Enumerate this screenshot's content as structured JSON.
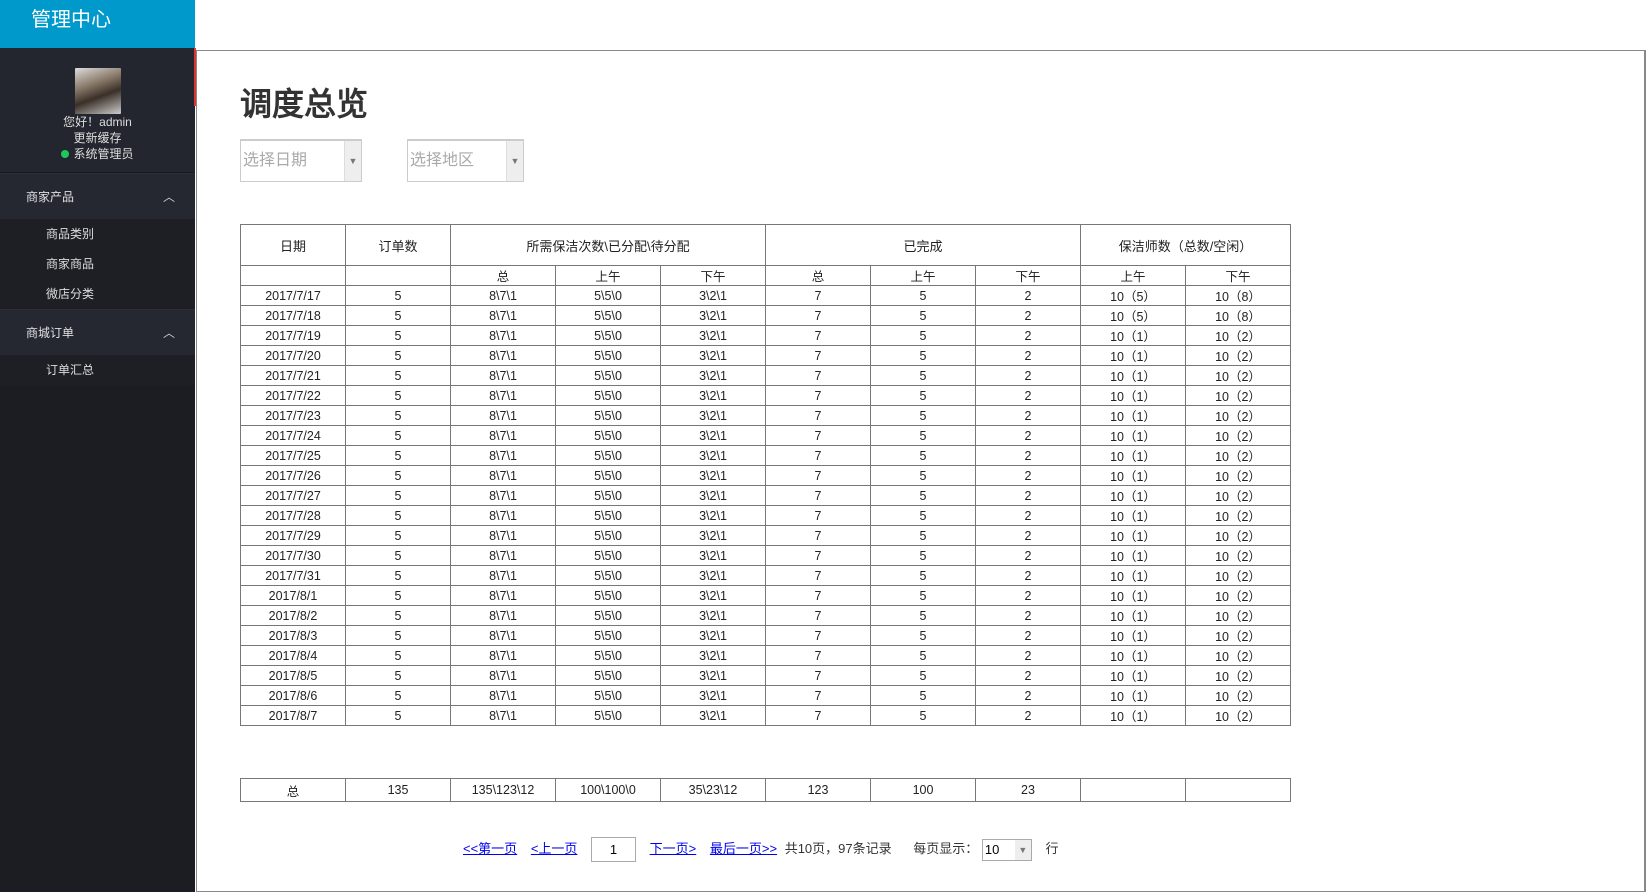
{
  "brand": "管理中心",
  "profile": {
    "greeting": "您好！admin",
    "refresh": "更新缓存",
    "role": "系统管理员"
  },
  "nav": [
    {
      "label": "商家产品",
      "items": [
        "商品类别",
        "商家商品",
        "微店分类"
      ]
    },
    {
      "label": "商城订单",
      "items": [
        "订单汇总"
      ]
    }
  ],
  "page_title": "调度总览",
  "filters": {
    "date_placeholder": "选择日期",
    "region_placeholder": "选择地区"
  },
  "table": {
    "headers": [
      "日期",
      "订单数",
      "所需保洁次数\\已分配\\待分配",
      "已完成",
      "保洁师数（总数/空闲）"
    ],
    "subheaders": [
      "",
      "",
      "总",
      "上午",
      "下午",
      "总",
      "上午",
      "下午",
      "上午",
      "下午"
    ],
    "rows": [
      [
        "2017/7/17",
        "5",
        "8\\7\\1",
        "5\\5\\0",
        "3\\2\\1",
        "7",
        "5",
        "2",
        "10（5）",
        "10（8）"
      ],
      [
        "2017/7/18",
        "5",
        "8\\7\\1",
        "5\\5\\0",
        "3\\2\\1",
        "7",
        "5",
        "2",
        "10（5）",
        "10（8）"
      ],
      [
        "2017/7/19",
        "5",
        "8\\7\\1",
        "5\\5\\0",
        "3\\2\\1",
        "7",
        "5",
        "2",
        "10（1）",
        "10（2）"
      ],
      [
        "2017/7/20",
        "5",
        "8\\7\\1",
        "5\\5\\0",
        "3\\2\\1",
        "7",
        "5",
        "2",
        "10（1）",
        "10（2）"
      ],
      [
        "2017/7/21",
        "5",
        "8\\7\\1",
        "5\\5\\0",
        "3\\2\\1",
        "7",
        "5",
        "2",
        "10（1）",
        "10（2）"
      ],
      [
        "2017/7/22",
        "5",
        "8\\7\\1",
        "5\\5\\0",
        "3\\2\\1",
        "7",
        "5",
        "2",
        "10（1）",
        "10（2）"
      ],
      [
        "2017/7/23",
        "5",
        "8\\7\\1",
        "5\\5\\0",
        "3\\2\\1",
        "7",
        "5",
        "2",
        "10（1）",
        "10（2）"
      ],
      [
        "2017/7/24",
        "5",
        "8\\7\\1",
        "5\\5\\0",
        "3\\2\\1",
        "7",
        "5",
        "2",
        "10（1）",
        "10（2）"
      ],
      [
        "2017/7/25",
        "5",
        "8\\7\\1",
        "5\\5\\0",
        "3\\2\\1",
        "7",
        "5",
        "2",
        "10（1）",
        "10（2）"
      ],
      [
        "2017/7/26",
        "5",
        "8\\7\\1",
        "5\\5\\0",
        "3\\2\\1",
        "7",
        "5",
        "2",
        "10（1）",
        "10（2）"
      ],
      [
        "2017/7/27",
        "5",
        "8\\7\\1",
        "5\\5\\0",
        "3\\2\\1",
        "7",
        "5",
        "2",
        "10（1）",
        "10（2）"
      ],
      [
        "2017/7/28",
        "5",
        "8\\7\\1",
        "5\\5\\0",
        "3\\2\\1",
        "7",
        "5",
        "2",
        "10（1）",
        "10（2）"
      ],
      [
        "2017/7/29",
        "5",
        "8\\7\\1",
        "5\\5\\0",
        "3\\2\\1",
        "7",
        "5",
        "2",
        "10（1）",
        "10（2）"
      ],
      [
        "2017/7/30",
        "5",
        "8\\7\\1",
        "5\\5\\0",
        "3\\2\\1",
        "7",
        "5",
        "2",
        "10（1）",
        "10（2）"
      ],
      [
        "2017/7/31",
        "5",
        "8\\7\\1",
        "5\\5\\0",
        "3\\2\\1",
        "7",
        "5",
        "2",
        "10（1）",
        "10（2）"
      ],
      [
        "2017/8/1",
        "5",
        "8\\7\\1",
        "5\\5\\0",
        "3\\2\\1",
        "7",
        "5",
        "2",
        "10（1）",
        "10（2）"
      ],
      [
        "2017/8/2",
        "5",
        "8\\7\\1",
        "5\\5\\0",
        "3\\2\\1",
        "7",
        "5",
        "2",
        "10（1）",
        "10（2）"
      ],
      [
        "2017/8/3",
        "5",
        "8\\7\\1",
        "5\\5\\0",
        "3\\2\\1",
        "7",
        "5",
        "2",
        "10（1）",
        "10（2）"
      ],
      [
        "2017/8/4",
        "5",
        "8\\7\\1",
        "5\\5\\0",
        "3\\2\\1",
        "7",
        "5",
        "2",
        "10（1）",
        "10（2）"
      ],
      [
        "2017/8/5",
        "5",
        "8\\7\\1",
        "5\\5\\0",
        "3\\2\\1",
        "7",
        "5",
        "2",
        "10（1）",
        "10（2）"
      ],
      [
        "2017/8/6",
        "5",
        "8\\7\\1",
        "5\\5\\0",
        "3\\2\\1",
        "7",
        "5",
        "2",
        "10（1）",
        "10（2）"
      ],
      [
        "2017/8/7",
        "5",
        "8\\7\\1",
        "5\\5\\0",
        "3\\2\\1",
        "7",
        "5",
        "2",
        "10（1）",
        "10（2）"
      ]
    ],
    "total": [
      "总",
      "135",
      "135\\123\\12",
      "100\\100\\0",
      "35\\23\\12",
      "123",
      "100",
      "23",
      "",
      ""
    ]
  },
  "pager": {
    "first": "<<第一页",
    "prev": "<上一页",
    "current": "1",
    "next": "下一页>",
    "last": "最后一页>>",
    "summary": "共10页，97条记录",
    "page_size_label": "每页显示：",
    "page_size": "10",
    "unit": "行"
  }
}
